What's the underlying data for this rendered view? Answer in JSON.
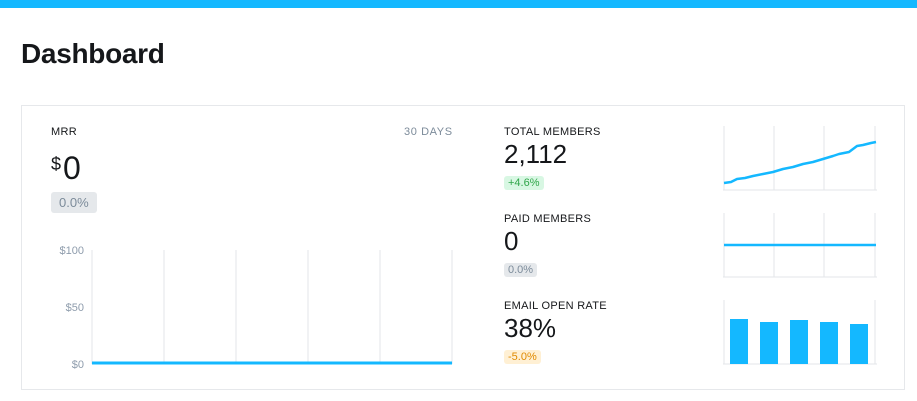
{
  "header": {
    "title": "Dashboard"
  },
  "mrr": {
    "label": "MRR",
    "range": "30 DAYS",
    "currency": "$",
    "value": "0",
    "change": "0.0%",
    "y_ticks": [
      "$100",
      "$50",
      "$0"
    ],
    "line_color": "#14b8ff"
  },
  "metrics": [
    {
      "label": "TOTAL MEMBERS",
      "value": "2,112",
      "change": "+4.6%",
      "change_tone": "positive"
    },
    {
      "label": "PAID MEMBERS",
      "value": "0",
      "change": "0.0%",
      "change_tone": "neutral"
    },
    {
      "label": "EMAIL OPEN RATE",
      "value": "38%",
      "change": "-5.0%",
      "change_tone": "negative"
    }
  ],
  "colors": {
    "accent": "#14b8ff",
    "positive": "#30a64a",
    "negative": "#e08a00"
  }
}
